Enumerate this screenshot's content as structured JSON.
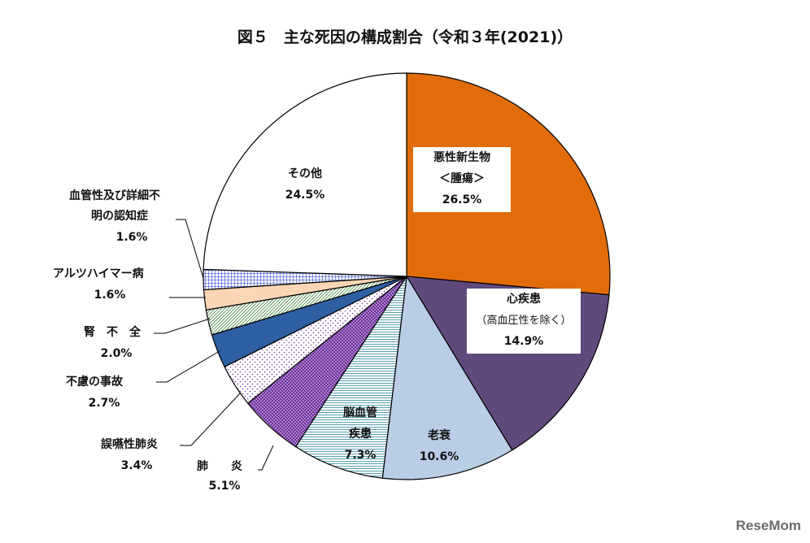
{
  "chart_data": {
    "type": "pie",
    "title": "図５　主な死因の構成割合（令和３年(2021)）",
    "start_angle_deg": 0,
    "direction": "clockwise",
    "slices": [
      {
        "key": "cancer",
        "label": "悪性新生物",
        "label2": "＜腫瘍＞",
        "value": 26.5,
        "value_text": "26.5%",
        "color": "#e36c0a",
        "pattern": "solid"
      },
      {
        "key": "heart",
        "label": "心疾患",
        "label2": "（高血圧性を除く）",
        "value": 14.9,
        "value_text": "14.9%",
        "color": "#604a7b",
        "pattern": "solid"
      },
      {
        "key": "senility",
        "label": "老衰",
        "label2": "",
        "value": 10.6,
        "value_text": "10.6%",
        "color": "#b9cde5",
        "pattern": "solid"
      },
      {
        "key": "stroke",
        "label": "脳血管",
        "label2": "疾患",
        "value": 7.3,
        "value_text": "7.3%",
        "color": "#ffffff",
        "pattern": "hlines"
      },
      {
        "key": "pneumonia",
        "label": "肺　　炎",
        "label2": "",
        "value": 5.1,
        "value_text": "5.1%",
        "color": "#7030a0",
        "pattern": "dots-white"
      },
      {
        "key": "aspiration",
        "label": "誤嚥性肺炎",
        "label2": "",
        "value": 3.4,
        "value_text": "3.4%",
        "color": "#ffffff",
        "pattern": "dots-purple"
      },
      {
        "key": "accident",
        "label": "不慮の事故",
        "label2": "",
        "value": 2.7,
        "value_text": "2.7%",
        "color": "#2e5fa3",
        "pattern": "solid"
      },
      {
        "key": "renal",
        "label": "腎　不　全",
        "label2": "",
        "value": 2.0,
        "value_text": "2.0%",
        "color": "#ffffff",
        "pattern": "diag-green"
      },
      {
        "key": "alzheimer",
        "label": "アルツハイマー病",
        "label2": "",
        "value": 1.6,
        "value_text": "1.6%",
        "color": "#fcd5b4",
        "pattern": "solid"
      },
      {
        "key": "vascular",
        "label": "血管性及び詳細不",
        "label2": "明の認知症",
        "value": 1.6,
        "value_text": "1.6%",
        "color": "#ffffff",
        "pattern": "grid-blue"
      },
      {
        "key": "other",
        "label": "その他",
        "label2": "",
        "value": 24.5,
        "value_text": "24.5%",
        "color": "#ffffff",
        "pattern": "solid"
      }
    ]
  },
  "watermark": {
    "text": "ReseMom"
  }
}
